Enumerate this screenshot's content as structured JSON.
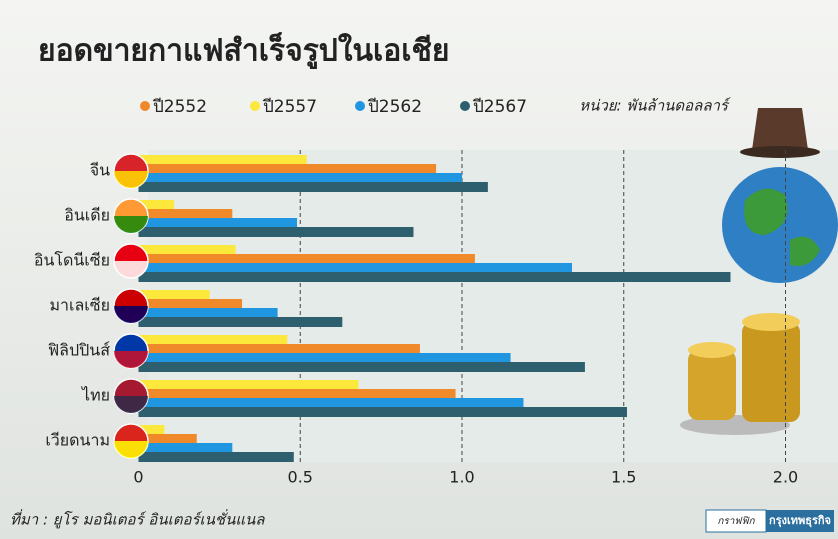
{
  "chart_data": {
    "type": "bar",
    "orientation": "horizontal",
    "title": "ยอดขายกาแฟสำเร็จรูปในเอเชีย",
    "unit": "หน่วย: พันล้านดอลลาร์",
    "source": "ที่มา : ยูโร มอนิเตอร์ อินเตอร์เนชั่นแนล",
    "credit": [
      "กราฟฟิก",
      "กรุงเทพธุรกิจ"
    ],
    "categories": [
      "จีน",
      "อินเดีย",
      "อินโดนีเซีย",
      "มาเลเซีย",
      "ฟิลิปปินส์",
      "ไทย",
      "เวียดนาม"
    ],
    "series": [
      {
        "name": "ปี2552",
        "color": "#f0892a",
        "values": [
          0.92,
          0.29,
          1.04,
          0.32,
          0.87,
          0.98,
          0.18
        ]
      },
      {
        "name": "ปี2557",
        "color": "#fbe83a",
        "values": [
          0.52,
          0.11,
          0.3,
          0.22,
          0.46,
          0.68,
          0.08
        ]
      },
      {
        "name": "ปี2562",
        "color": "#2196e0",
        "values": [
          1.0,
          0.49,
          1.34,
          0.43,
          1.15,
          1.19,
          0.29
        ]
      },
      {
        "name": "ปี2567",
        "color": "#2e5f6f",
        "values": [
          1.08,
          0.85,
          1.83,
          0.63,
          1.38,
          1.51,
          0.48
        ]
      }
    ],
    "bar_order": [
      1,
      0,
      2,
      3
    ],
    "xlim": [
      0,
      2.1
    ],
    "xticks": [
      0,
      0.5,
      {
        "value": 1,
        "label": "1.0"
      },
      1.5,
      {
        "value": 2,
        "label": "2.0"
      }
    ],
    "grid": true
  }
}
